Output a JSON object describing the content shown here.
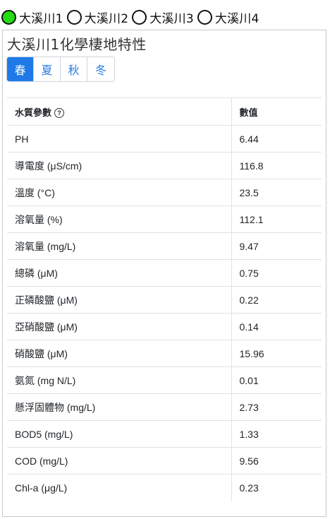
{
  "stations": [
    {
      "label": "大溪川1",
      "selected": true
    },
    {
      "label": "大溪川2",
      "selected": false
    },
    {
      "label": "大溪川3",
      "selected": false
    },
    {
      "label": "大溪川4",
      "selected": false
    }
  ],
  "card": {
    "title": "大溪川1化學棲地特性"
  },
  "tabs": [
    {
      "label": "春",
      "active": true
    },
    {
      "label": "夏",
      "active": false
    },
    {
      "label": "秋",
      "active": false
    },
    {
      "label": "冬",
      "active": false
    }
  ],
  "table": {
    "headers": {
      "param": "水質參數",
      "value": "數值",
      "help_icon": "?"
    },
    "rows": [
      {
        "param": "PH",
        "value": "6.44"
      },
      {
        "param": "導電度 (μS/cm)",
        "value": "116.8"
      },
      {
        "param": "溫度 (°C)",
        "value": "23.5"
      },
      {
        "param": "溶氧量 (%)",
        "value": "112.1"
      },
      {
        "param": "溶氧量 (mg/L)",
        "value": "9.47"
      },
      {
        "param": "總磷 (μM)",
        "value": "0.75"
      },
      {
        "param": "正磷酸鹽 (μM)",
        "value": "0.22"
      },
      {
        "param": "亞硝酸鹽 (μM)",
        "value": "0.14"
      },
      {
        "param": "硝酸鹽 (μM)",
        "value": "15.96"
      },
      {
        "param": "氨氮 (mg N/L)",
        "value": "0.01"
      },
      {
        "param": "懸浮固體物 (mg/L)",
        "value": "2.73"
      },
      {
        "param": "BOD5 (mg/L)",
        "value": "1.33"
      },
      {
        "param": "COD (mg/L)",
        "value": "9.56"
      },
      {
        "param": "Chl-a (μg/L)",
        "value": "0.23"
      }
    ]
  },
  "colors": {
    "selected_radio": "#22dd11",
    "active_tab": "#1f7ae8",
    "tab_text": "#2a7ae2"
  }
}
